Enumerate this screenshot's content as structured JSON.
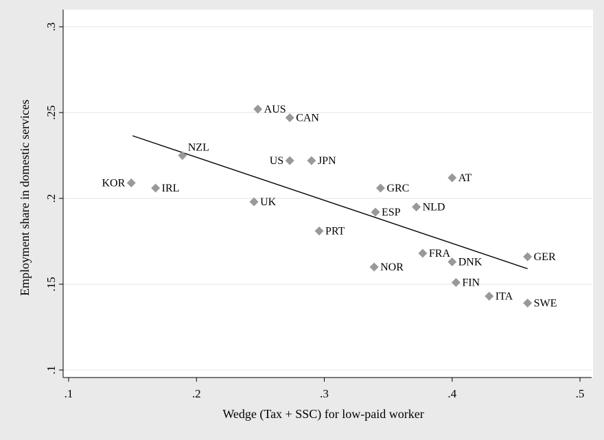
{
  "chart_data": {
    "type": "scatter",
    "title": "",
    "xlabel": "Wedge (Tax + SSC) for low-paid worker",
    "ylabel": "Employment share in domestic services",
    "xlim": [
      0.1,
      0.5
    ],
    "ylim": [
      0.1,
      0.3
    ],
    "x_ticks": [
      0.1,
      0.2,
      0.3,
      0.4,
      0.5
    ],
    "x_tick_labels": [
      ".1",
      ".2",
      ".3",
      ".4",
      ".5"
    ],
    "y_ticks": [
      0.1,
      0.15,
      0.2,
      0.25,
      0.3
    ],
    "y_tick_labels": [
      ".1",
      ".15",
      ".2",
      ".25",
      ".3"
    ],
    "grid": "horizontal",
    "marker_color": "#999999",
    "points": [
      {
        "label": "AUS",
        "x": 0.248,
        "y": 0.252,
        "pos": "right"
      },
      {
        "label": "CAN",
        "x": 0.273,
        "y": 0.247,
        "pos": "right"
      },
      {
        "label": "NZL",
        "x": 0.189,
        "y": 0.225,
        "pos": "upright"
      },
      {
        "label": "US",
        "x": 0.273,
        "y": 0.222,
        "pos": "left"
      },
      {
        "label": "JPN",
        "x": 0.29,
        "y": 0.222,
        "pos": "right"
      },
      {
        "label": "KOR",
        "x": 0.149,
        "y": 0.209,
        "pos": "left"
      },
      {
        "label": "IRL",
        "x": 0.168,
        "y": 0.206,
        "pos": "right"
      },
      {
        "label": "AT",
        "x": 0.4,
        "y": 0.212,
        "pos": "right"
      },
      {
        "label": "GRC",
        "x": 0.344,
        "y": 0.206,
        "pos": "right"
      },
      {
        "label": "UK",
        "x": 0.245,
        "y": 0.198,
        "pos": "right"
      },
      {
        "label": "NLD",
        "x": 0.372,
        "y": 0.195,
        "pos": "right"
      },
      {
        "label": "ESP",
        "x": 0.34,
        "y": 0.192,
        "pos": "right"
      },
      {
        "label": "PRT",
        "x": 0.296,
        "y": 0.181,
        "pos": "right"
      },
      {
        "label": "FRA",
        "x": 0.377,
        "y": 0.168,
        "pos": "right"
      },
      {
        "label": "GER",
        "x": 0.459,
        "y": 0.166,
        "pos": "right"
      },
      {
        "label": "DNK",
        "x": 0.4,
        "y": 0.163,
        "pos": "right"
      },
      {
        "label": "NOR",
        "x": 0.339,
        "y": 0.16,
        "pos": "right"
      },
      {
        "label": "FIN",
        "x": 0.403,
        "y": 0.151,
        "pos": "right"
      },
      {
        "label": "ITA",
        "x": 0.429,
        "y": 0.143,
        "pos": "right"
      },
      {
        "label": "SWE",
        "x": 0.459,
        "y": 0.139,
        "pos": "right"
      }
    ],
    "fit_line": {
      "x": [
        0.15,
        0.459
      ],
      "y": [
        0.2365,
        0.159
      ]
    }
  }
}
